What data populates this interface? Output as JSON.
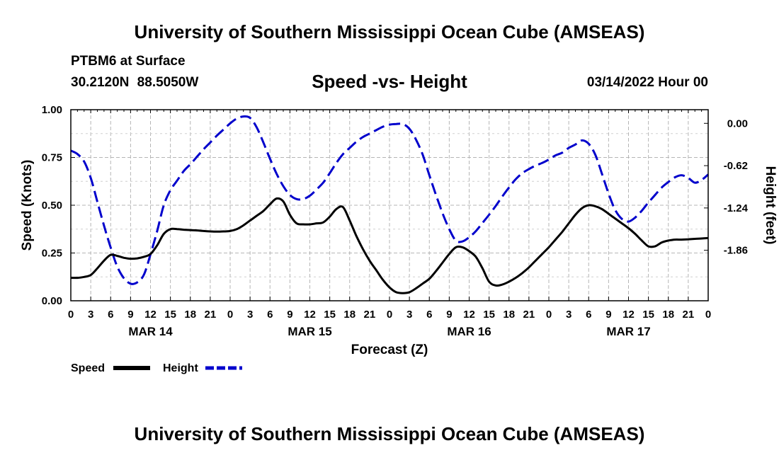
{
  "header": {
    "title": "University of Southern Mississippi Ocean Cube (AMSEAS)",
    "station": "PTBM6 at Surface",
    "coordinates": "30.2120N  88.5050W",
    "subtitle": "Speed -vs- Height",
    "datetime": "03/14/2022 Hour 00"
  },
  "footer": {
    "title": "University of Southern Mississippi Ocean Cube (AMSEAS)"
  },
  "chart_data": {
    "type": "line",
    "title": "Speed -vs- Height",
    "xlabel": "Forecast (Z)",
    "ylabel": "Speed (Knots)",
    "y2label": "Height (feet)",
    "xlim": [
      0,
      96
    ],
    "ylim": [
      0,
      1
    ],
    "y2lim": [
      -2.6,
      0.2
    ],
    "x_ticks": [
      0,
      3,
      6,
      9,
      12,
      15,
      18,
      21,
      24,
      27,
      30,
      33,
      36,
      39,
      42,
      45,
      48,
      51,
      54,
      57,
      60,
      63,
      66,
      69,
      72,
      75,
      78,
      81,
      84,
      87,
      90,
      93,
      96
    ],
    "x_tick_labels": [
      "0",
      "3",
      "6",
      "9",
      "12",
      "15",
      "18",
      "21",
      "0",
      "3",
      "6",
      "9",
      "12",
      "15",
      "18",
      "21",
      "0",
      "3",
      "6",
      "9",
      "12",
      "15",
      "18",
      "21",
      "0",
      "3",
      "6",
      "9",
      "12",
      "15",
      "18",
      "21",
      "0"
    ],
    "day_labels": [
      {
        "x": 12,
        "label": "MAR 14"
      },
      {
        "x": 36,
        "label": "MAR 15"
      },
      {
        "x": 60,
        "label": "MAR 16"
      },
      {
        "x": 84,
        "label": "MAR 17"
      }
    ],
    "y_ticks": [
      0,
      0.25,
      0.5,
      0.75,
      1.0
    ],
    "y_tick_labels": [
      "0.00",
      "0.25",
      "0.50",
      "0.75",
      "1.00"
    ],
    "y2_ticks": [
      0,
      -0.62,
      -1.24,
      -1.86
    ],
    "y2_tick_labels": [
      "0.00",
      "-0.62",
      "-1.24",
      "-1.86"
    ],
    "grid": true,
    "legend": "bottom-left",
    "series": [
      {
        "name": "Speed",
        "axis": "left",
        "color": "#000000",
        "dash": "solid",
        "x": [
          0,
          1,
          2,
          3,
          4,
          5,
          6,
          7,
          8,
          9,
          10,
          11,
          12,
          13,
          14,
          15,
          16,
          17,
          18,
          19,
          20,
          21,
          22,
          23,
          24,
          25,
          26,
          27,
          28,
          29,
          30,
          31,
          32,
          33,
          34,
          35,
          36,
          37,
          38,
          39,
          40,
          41,
          42,
          43,
          44,
          45,
          46,
          47,
          48,
          49,
          50,
          51,
          52,
          53,
          54,
          55,
          56,
          57,
          58,
          59,
          60,
          61,
          62,
          63,
          64,
          65,
          66,
          67,
          68,
          69,
          70,
          71,
          72,
          73,
          74,
          75,
          76,
          77,
          78,
          79,
          80,
          81,
          82,
          83,
          84,
          85,
          86,
          87,
          88,
          89,
          90,
          91,
          92,
          93,
          94,
          95,
          96
        ],
        "values": [
          0.12,
          0.12,
          0.125,
          0.135,
          0.17,
          0.21,
          0.24,
          0.235,
          0.225,
          0.22,
          0.222,
          0.23,
          0.245,
          0.29,
          0.35,
          0.375,
          0.375,
          0.372,
          0.37,
          0.368,
          0.365,
          0.363,
          0.362,
          0.363,
          0.365,
          0.375,
          0.395,
          0.42,
          0.445,
          0.47,
          0.505,
          0.535,
          0.52,
          0.45,
          0.405,
          0.4,
          0.4,
          0.405,
          0.41,
          0.44,
          0.48,
          0.49,
          0.42,
          0.34,
          0.27,
          0.21,
          0.16,
          0.11,
          0.07,
          0.045,
          0.04,
          0.045,
          0.065,
          0.09,
          0.115,
          0.155,
          0.2,
          0.245,
          0.28,
          0.28,
          0.26,
          0.23,
          0.17,
          0.1,
          0.08,
          0.085,
          0.1,
          0.12,
          0.145,
          0.175,
          0.21,
          0.245,
          0.28,
          0.32,
          0.36,
          0.405,
          0.45,
          0.485,
          0.5,
          0.495,
          0.48,
          0.455,
          0.43,
          0.405,
          0.38,
          0.35,
          0.315,
          0.285,
          0.285,
          0.305,
          0.315,
          0.32,
          0.32,
          0.322,
          0.324,
          0.326,
          0.328
        ]
      },
      {
        "name": "Height",
        "axis": "right",
        "color": "#0000cc",
        "dash": "dashed",
        "x": [
          0,
          1,
          2,
          3,
          4,
          5,
          6,
          7,
          8,
          9,
          10,
          11,
          12,
          13,
          14,
          15,
          16,
          17,
          18,
          19,
          20,
          21,
          22,
          23,
          24,
          25,
          26,
          27,
          28,
          29,
          30,
          31,
          32,
          33,
          34,
          35,
          36,
          37,
          38,
          39,
          40,
          41,
          42,
          43,
          44,
          45,
          46,
          47,
          48,
          49,
          50,
          51,
          52,
          53,
          54,
          55,
          56,
          57,
          58,
          59,
          60,
          61,
          62,
          63,
          64,
          65,
          66,
          67,
          68,
          69,
          70,
          71,
          72,
          73,
          74,
          75,
          76,
          77,
          78,
          79,
          80,
          81,
          82,
          83,
          84,
          85,
          86,
          87,
          88,
          89,
          90,
          91,
          92,
          93,
          94,
          95,
          96
        ],
        "values": [
          -0.4,
          -0.45,
          -0.56,
          -0.8,
          -1.15,
          -1.5,
          -1.82,
          -2.1,
          -2.27,
          -2.35,
          -2.33,
          -2.22,
          -1.92,
          -1.58,
          -1.2,
          -0.98,
          -0.84,
          -0.7,
          -0.6,
          -0.49,
          -0.38,
          -0.28,
          -0.18,
          -0.09,
          0.0,
          0.07,
          0.1,
          0.08,
          -0.06,
          -0.28,
          -0.52,
          -0.74,
          -0.92,
          -1.05,
          -1.11,
          -1.11,
          -1.06,
          -0.97,
          -0.87,
          -0.73,
          -0.58,
          -0.45,
          -0.36,
          -0.27,
          -0.2,
          -0.15,
          -0.1,
          -0.05,
          -0.02,
          -0.01,
          -0.01,
          -0.08,
          -0.24,
          -0.46,
          -0.76,
          -1.05,
          -1.32,
          -1.55,
          -1.72,
          -1.73,
          -1.67,
          -1.58,
          -1.46,
          -1.34,
          -1.21,
          -1.07,
          -0.94,
          -0.82,
          -0.73,
          -0.67,
          -0.62,
          -0.58,
          -0.53,
          -0.47,
          -0.43,
          -0.36,
          -0.31,
          -0.25,
          -0.3,
          -0.46,
          -0.74,
          -1.03,
          -1.27,
          -1.4,
          -1.44,
          -1.38,
          -1.28,
          -1.16,
          -1.05,
          -0.94,
          -0.86,
          -0.79,
          -0.76,
          -0.8,
          -0.87,
          -0.83,
          -0.75
        ]
      }
    ]
  }
}
